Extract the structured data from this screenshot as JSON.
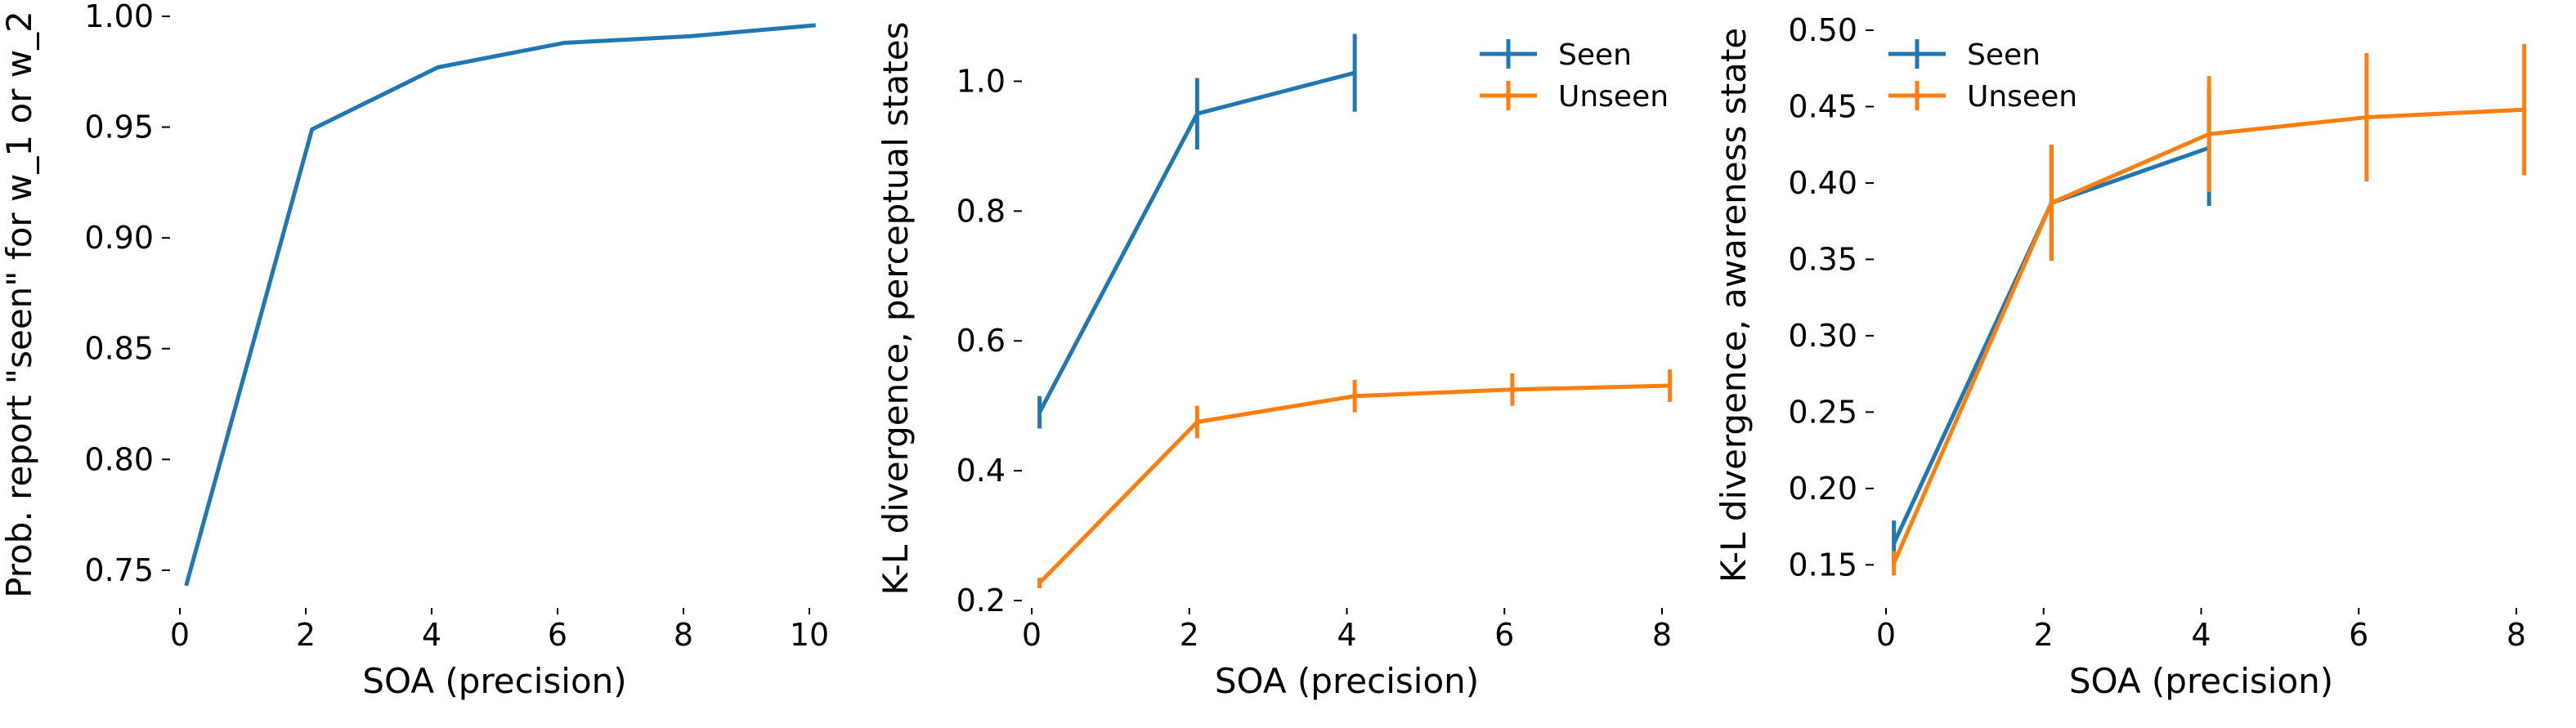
{
  "colors": {
    "seen": "#1f77b4",
    "unseen": "#ff7f0e",
    "axis": "#000000"
  },
  "chart_data": [
    {
      "type": "line",
      "xlabel": "SOA (precision)",
      "ylabel": "Prob. report \"seen\" for w_1 or w_2",
      "xlim": [
        0,
        10
      ],
      "ylim": [
        0.74,
        1.0
      ],
      "xticks": [
        "0",
        "2",
        "4",
        "6",
        "8",
        "10"
      ],
      "yticks": [
        "0.75",
        "0.80",
        "0.85",
        "0.90",
        "0.95",
        "1.00"
      ],
      "grid": false,
      "legend": null,
      "series": [
        {
          "color": "seen",
          "x": [
            0.1,
            2.1,
            4.1,
            6.1,
            8.1,
            10.1
          ],
          "y": [
            0.743,
            0.949,
            0.977,
            0.988,
            0.991,
            0.996
          ]
        }
      ]
    },
    {
      "type": "line",
      "xlabel": "SOA (precision)",
      "ylabel": "K-L divergence, perceptual states",
      "xlim": [
        0,
        8
      ],
      "ylim": [
        0.2,
        1.1
      ],
      "xticks": [
        "0",
        "2",
        "4",
        "6",
        "8"
      ],
      "yticks": [
        "0.2",
        "0.4",
        "0.6",
        "0.8",
        "1.0"
      ],
      "grid": false,
      "legend": "top-right",
      "series": [
        {
          "name": "Seen",
          "color": "seen",
          "x": [
            0.1,
            2.1,
            4.1
          ],
          "y": [
            0.49,
            0.95,
            1.013
          ],
          "err": [
            0.025,
            0.055,
            0.06
          ]
        },
        {
          "name": "Unseen",
          "color": "unseen",
          "x": [
            0.1,
            2.1,
            4.1,
            6.1,
            8.1
          ],
          "y": [
            0.227,
            0.475,
            0.515,
            0.525,
            0.531
          ],
          "err": [
            0.008,
            0.025,
            0.025,
            0.025,
            0.025
          ]
        }
      ]
    },
    {
      "type": "line",
      "xlabel": "SOA (precision)",
      "ylabel": "K-L divergence, awareness state",
      "xlim": [
        0,
        8
      ],
      "ylim": [
        0.14,
        0.5
      ],
      "xticks": [
        "0",
        "2",
        "4",
        "6",
        "8"
      ],
      "yticks": [
        "0.15",
        "0.20",
        "0.25",
        "0.30",
        "0.35",
        "0.40",
        "0.45",
        "0.50"
      ],
      "grid": false,
      "legend": "top-left",
      "series": [
        {
          "name": "Seen",
          "color": "seen",
          "x": [
            0.1,
            2.1,
            4.1
          ],
          "y": [
            0.164,
            0.387,
            0.423
          ],
          "err": [
            0.015,
            0.038,
            0.038
          ]
        },
        {
          "name": "Unseen",
          "color": "unseen",
          "x": [
            0.1,
            2.1,
            4.1,
            6.1,
            8.1
          ],
          "y": [
            0.151,
            0.387,
            0.432,
            0.443,
            0.448
          ],
          "err": [
            0.008,
            0.038,
            0.038,
            0.042,
            0.043
          ]
        }
      ]
    }
  ]
}
